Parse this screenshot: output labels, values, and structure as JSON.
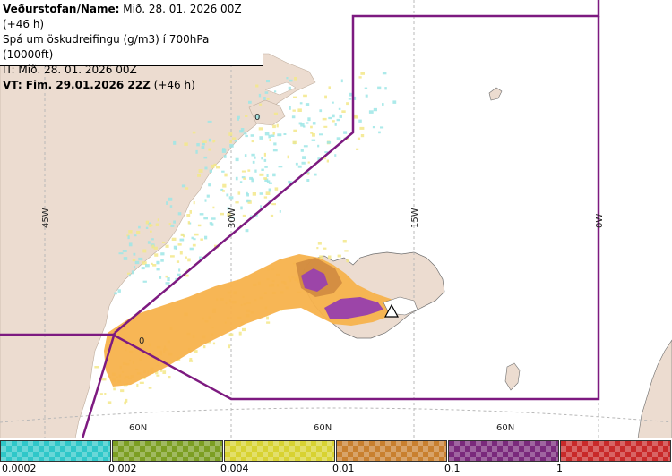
{
  "header": {
    "line1_bold": "Veðurstofan/Name:",
    "line1_rest": " Mið. 28. 01. 2026 00Z (+46 h)",
    "line2": "Spá um öskudreifingu (g/m3) í 700hPa (10000ft)",
    "line3": "IT: Mið. 28. 01. 2026 00Z",
    "line4_bold": "VT: Fim. 29.01.2026 22Z",
    "line4_rest": " (+46 h)"
  },
  "map": {
    "longitude_labels": [
      "45W",
      "30W",
      "15W",
      "0W"
    ],
    "latitude_labels": [
      "60N",
      "60N",
      "60N"
    ],
    "contour_label": "0",
    "colors": {
      "ocean": "#ffffff",
      "land": "#ecdcd0",
      "boundary": "#7d1a80",
      "graticule": "#b8b8b8",
      "ash_orange": "#f7b24c",
      "ash_yellow": "#f3e88a",
      "ash_cyan": "#9ee6e6",
      "ash_purple": "#9c45a8",
      "ash_brown": "#c8823c"
    }
  },
  "legend": {
    "labels": [
      "0.0002",
      "0.002",
      "0.004",
      "0.01",
      "0.1",
      "1"
    ],
    "colors": [
      "#2fc7c9",
      "#7c9e22",
      "#d8d232",
      "#c9802f",
      "#7a2a7c",
      "#c92a2a"
    ]
  }
}
